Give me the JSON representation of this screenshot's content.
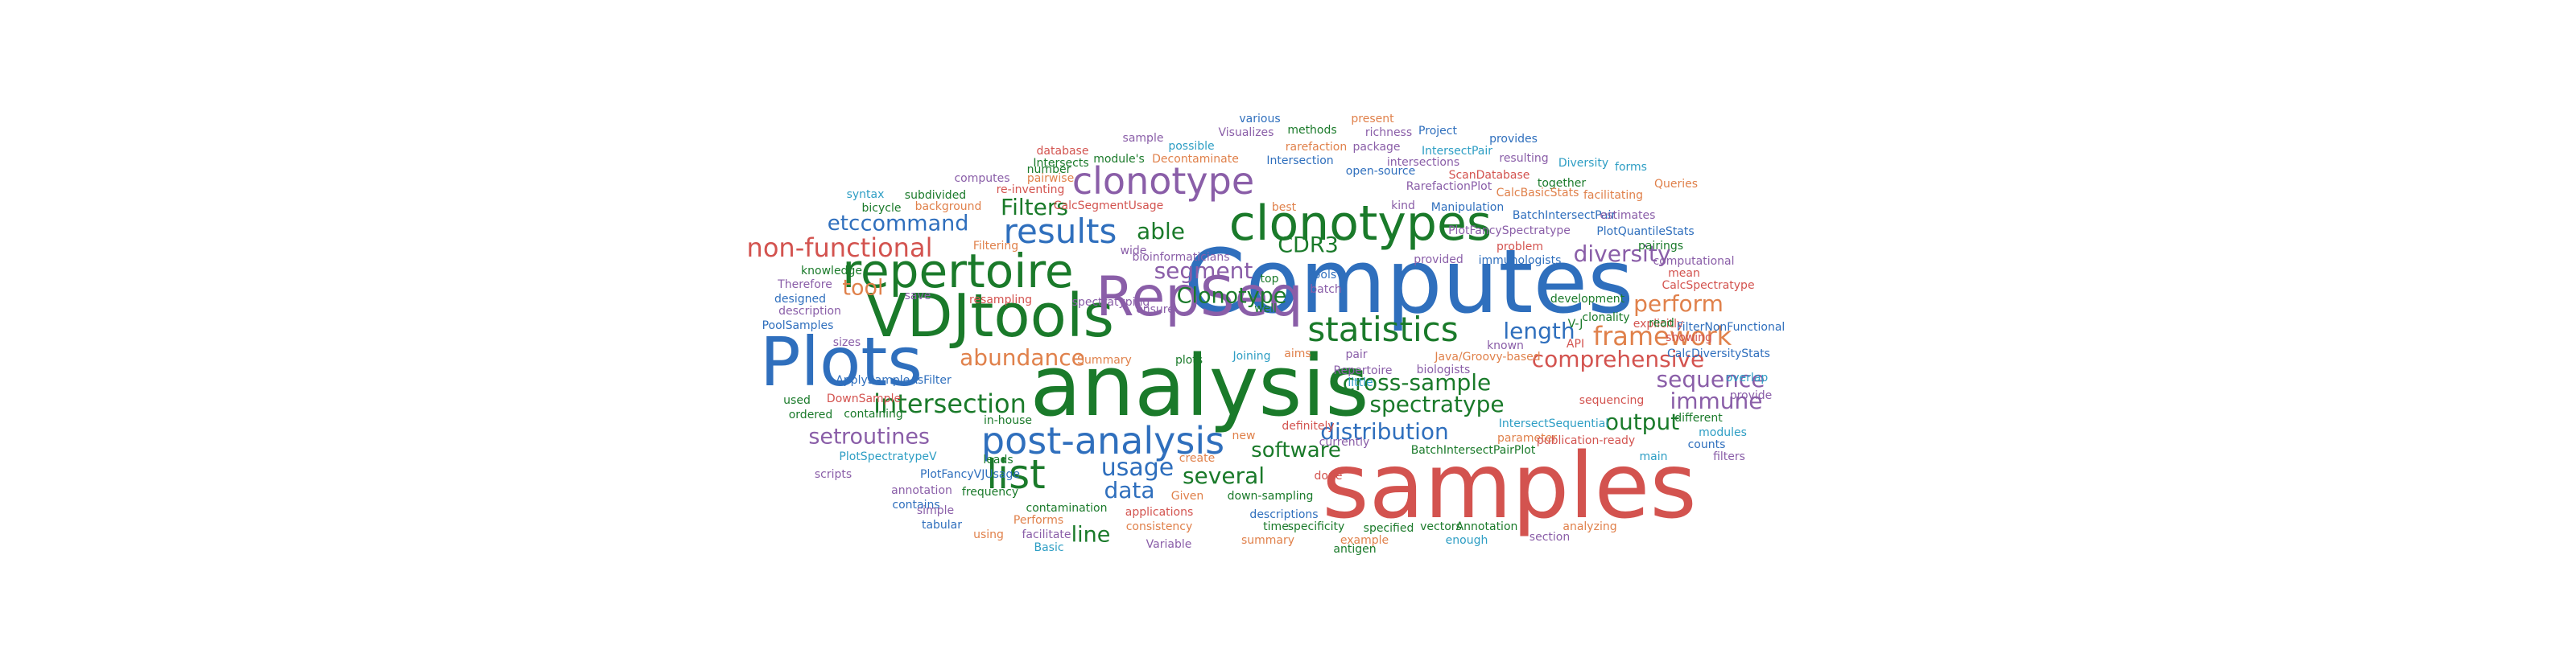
{
  "palette": {
    "green": "#1a7a2a",
    "blue": "#2f6fbd",
    "red": "#d3534f",
    "purple": "#8a5ea8",
    "orange": "#e0814b",
    "teal": "#2e9ec4",
    "darkgreen": "#2e8c3e"
  },
  "words": [
    {
      "text": "Computes",
      "color": "blue"
    },
    {
      "text": "samples",
      "color": "red"
    },
    {
      "text": "analysis",
      "color": "green"
    },
    {
      "text": "Plots",
      "color": "blue"
    },
    {
      "text": "VDJtools",
      "color": "green"
    },
    {
      "text": "RepSeq",
      "color": "purple"
    },
    {
      "text": "clonotypes",
      "color": "green"
    },
    {
      "text": "repertoire",
      "color": "green"
    },
    {
      "text": "post-analysis",
      "color": "blue"
    },
    {
      "text": "clonotype",
      "color": "purple"
    },
    {
      "text": "results",
      "color": "blue"
    },
    {
      "text": "statistics",
      "color": "green"
    },
    {
      "text": "list",
      "color": "green"
    },
    {
      "text": "non-functional",
      "color": "red"
    },
    {
      "text": "framework",
      "color": "orange"
    },
    {
      "text": "intersection",
      "color": "green"
    },
    {
      "text": "usage",
      "color": "blue"
    },
    {
      "text": "several",
      "color": "green"
    },
    {
      "text": "abundance",
      "color": "orange"
    },
    {
      "text": "comprehensive",
      "color": "red"
    },
    {
      "text": "cross-sample",
      "color": "green"
    },
    {
      "text": "spectratype",
      "color": "green"
    },
    {
      "text": "distribution",
      "color": "blue"
    },
    {
      "text": "sequence",
      "color": "purple"
    },
    {
      "text": "immune",
      "color": "purple"
    },
    {
      "text": "output",
      "color": "green"
    },
    {
      "text": "diversity",
      "color": "purple"
    },
    {
      "text": "perform",
      "color": "orange"
    },
    {
      "text": "length",
      "color": "blue"
    },
    {
      "text": "segment",
      "color": "purple"
    },
    {
      "text": "Clonotype",
      "color": "green"
    },
    {
      "text": "software",
      "color": "green"
    },
    {
      "text": "data",
      "color": "blue"
    },
    {
      "text": "line",
      "color": "green"
    },
    {
      "text": "routines",
      "color": "purple"
    },
    {
      "text": "set",
      "color": "purple"
    },
    {
      "text": "tool",
      "color": "orange"
    },
    {
      "text": "command",
      "color": "blue"
    },
    {
      "text": "etc",
      "color": "blue"
    },
    {
      "text": "Filters",
      "color": "green"
    },
    {
      "text": "able",
      "color": "green"
    },
    {
      "text": "CDR3",
      "color": "green"
    },
    {
      "text": "methods",
      "color": "green"
    },
    {
      "text": "various",
      "color": "blue"
    },
    {
      "text": "present",
      "color": "orange"
    },
    {
      "text": "Project",
      "color": "blue"
    },
    {
      "text": "richness",
      "color": "purple"
    },
    {
      "text": "provides",
      "color": "blue"
    },
    {
      "text": "Visualizes",
      "color": "purple"
    },
    {
      "text": "sample",
      "color": "purple"
    },
    {
      "text": "possible",
      "color": "teal"
    },
    {
      "text": "package",
      "color": "purple"
    },
    {
      "text": "module's",
      "color": "green"
    },
    {
      "text": "rarefaction",
      "color": "orange"
    },
    {
      "text": "IntersectPair",
      "color": "teal"
    },
    {
      "text": "database",
      "color": "red"
    },
    {
      "text": "Decontaminate",
      "color": "orange"
    },
    {
      "text": "Intersection",
      "color": "blue"
    },
    {
      "text": "resulting",
      "color": "purple"
    },
    {
      "text": "Diversity",
      "color": "teal"
    },
    {
      "text": "forms",
      "color": "teal"
    },
    {
      "text": "Intersects",
      "color": "green"
    },
    {
      "text": "number",
      "color": "green"
    },
    {
      "text": "open-source",
      "color": "blue"
    },
    {
      "text": "intersections",
      "color": "purple"
    },
    {
      "text": "ScanDatabase",
      "color": "red"
    },
    {
      "text": "pairwise",
      "color": "orange"
    },
    {
      "text": "computes",
      "color": "purple"
    },
    {
      "text": "re-inventing",
      "color": "red"
    },
    {
      "text": "RarefactionPlot",
      "color": "purple"
    },
    {
      "text": "together",
      "color": "green"
    },
    {
      "text": "Queries",
      "color": "orange"
    },
    {
      "text": "syntax",
      "color": "teal"
    },
    {
      "text": "subdivided",
      "color": "green"
    },
    {
      "text": "CalcSegmentUsage",
      "color": "red"
    },
    {
      "text": "best",
      "color": "orange"
    },
    {
      "text": "kind",
      "color": "purple"
    },
    {
      "text": "Manipulation",
      "color": "blue"
    },
    {
      "text": "CalcBasicStats",
      "color": "orange"
    },
    {
      "text": "facilitating",
      "color": "orange"
    },
    {
      "text": "bicycle",
      "color": "green"
    },
    {
      "text": "background",
      "color": "orange"
    },
    {
      "text": "wide",
      "color": "purple"
    },
    {
      "text": "BatchIntersectPair",
      "color": "blue"
    },
    {
      "text": "estimates",
      "color": "purple"
    },
    {
      "text": "PlotFancySpectratype",
      "color": "purple"
    },
    {
      "text": "PlotQuantileStats",
      "color": "blue"
    },
    {
      "text": "Filtering",
      "color": "orange"
    },
    {
      "text": "bioinformaticians",
      "color": "purple"
    },
    {
      "text": "problem",
      "color": "red"
    },
    {
      "text": "pairings",
      "color": "green"
    },
    {
      "text": "immunologists",
      "color": "blue"
    },
    {
      "text": "computational",
      "color": "purple"
    },
    {
      "text": "knowledge",
      "color": "green"
    },
    {
      "text": "provided",
      "color": "purple"
    },
    {
      "text": "mean",
      "color": "red"
    },
    {
      "text": "Therefore",
      "color": "purple"
    },
    {
      "text": "save",
      "color": "purple"
    },
    {
      "text": "spectratyping",
      "color": "purple"
    },
    {
      "text": "top",
      "color": "green"
    },
    {
      "text": "Pools",
      "color": "blue"
    },
    {
      "text": "development",
      "color": "green"
    },
    {
      "text": "CalcSpectratype",
      "color": "red"
    },
    {
      "text": "designed",
      "color": "blue"
    },
    {
      "text": "resampling",
      "color": "red"
    },
    {
      "text": "batch",
      "color": "purple"
    },
    {
      "text": "clonality",
      "color": "green"
    },
    {
      "text": "explicitly",
      "color": "red"
    },
    {
      "text": "description",
      "color": "purple"
    },
    {
      "text": "ensure",
      "color": "purple"
    },
    {
      "text": "well",
      "color": "green"
    },
    {
      "text": "V-J",
      "color": "green"
    },
    {
      "text": "read",
      "color": "green"
    },
    {
      "text": "showing",
      "color": "red"
    },
    {
      "text": "PoolSamples",
      "color": "blue"
    },
    {
      "text": "known",
      "color": "purple"
    },
    {
      "text": "FilterNonFunctional",
      "color": "blue"
    },
    {
      "text": "sizes",
      "color": "purple"
    },
    {
      "text": "Summary",
      "color": "orange"
    },
    {
      "text": "Java/Groovy-based",
      "color": "orange"
    },
    {
      "text": "API",
      "color": "red"
    },
    {
      "text": "CalcDiversityStats",
      "color": "blue"
    },
    {
      "text": "ApplySampleAsFilter",
      "color": "blue"
    },
    {
      "text": "plots",
      "color": "green"
    },
    {
      "text": "Joining",
      "color": "teal"
    },
    {
      "text": "aims",
      "color": "orange"
    },
    {
      "text": "pair",
      "color": "purple"
    },
    {
      "text": "biologists",
      "color": "purple"
    },
    {
      "text": "overlap",
      "color": "teal"
    },
    {
      "text": "used",
      "color": "green"
    },
    {
      "text": "DownSample",
      "color": "red"
    },
    {
      "text": "Repertoire",
      "color": "purple"
    },
    {
      "text": "little",
      "color": "teal"
    },
    {
      "text": "sequencing",
      "color": "red"
    },
    {
      "text": "provide",
      "color": "purple"
    },
    {
      "text": "ordered",
      "color": "green"
    },
    {
      "text": "containing",
      "color": "green"
    },
    {
      "text": "in-house",
      "color": "green"
    },
    {
      "text": "IntersectSequential",
      "color": "teal"
    },
    {
      "text": "different",
      "color": "green"
    },
    {
      "text": "leads",
      "color": "green"
    },
    {
      "text": "definitely",
      "color": "red"
    },
    {
      "text": "parameter",
      "color": "orange"
    },
    {
      "text": "modules",
      "color": "teal"
    },
    {
      "text": "PlotSpectratypeV",
      "color": "teal"
    },
    {
      "text": "create",
      "color": "orange"
    },
    {
      "text": "currently",
      "color": "purple"
    },
    {
      "text": "BatchIntersectPairPlot",
      "color": "green"
    },
    {
      "text": "publication-ready",
      "color": "red"
    },
    {
      "text": "counts",
      "color": "blue"
    },
    {
      "text": "scripts",
      "color": "purple"
    },
    {
      "text": "PlotFancyVJUsage",
      "color": "blue"
    },
    {
      "text": "new",
      "color": "orange"
    },
    {
      "text": "main",
      "color": "teal"
    },
    {
      "text": "filters",
      "color": "purple"
    },
    {
      "text": "annotation",
      "color": "purple"
    },
    {
      "text": "frequency",
      "color": "green"
    },
    {
      "text": "Given",
      "color": "orange"
    },
    {
      "text": "down-sampling",
      "color": "green"
    },
    {
      "text": "done",
      "color": "red"
    },
    {
      "text": "contains",
      "color": "blue"
    },
    {
      "text": "contamination",
      "color": "green"
    },
    {
      "text": "descriptions",
      "color": "blue"
    },
    {
      "text": "simple",
      "color": "purple"
    },
    {
      "text": "applications",
      "color": "red"
    },
    {
      "text": "tabular",
      "color": "blue"
    },
    {
      "text": "Performs",
      "color": "orange"
    },
    {
      "text": "consistency",
      "color": "orange"
    },
    {
      "text": "time",
      "color": "green"
    },
    {
      "text": "specificity",
      "color": "green"
    },
    {
      "text": "specified",
      "color": "green"
    },
    {
      "text": "vectors",
      "color": "green"
    },
    {
      "text": "Annotation",
      "color": "green"
    },
    {
      "text": "analyzing",
      "color": "orange"
    },
    {
      "text": "using",
      "color": "orange"
    },
    {
      "text": "facilitate",
      "color": "purple"
    },
    {
      "text": "Variable",
      "color": "purple"
    },
    {
      "text": "summary",
      "color": "orange"
    },
    {
      "text": "example",
      "color": "orange"
    },
    {
      "text": "enough",
      "color": "teal"
    },
    {
      "text": "section",
      "color": "purple"
    },
    {
      "text": "Basic",
      "color": "teal"
    },
    {
      "text": "antigen",
      "color": "green"
    }
  ]
}
